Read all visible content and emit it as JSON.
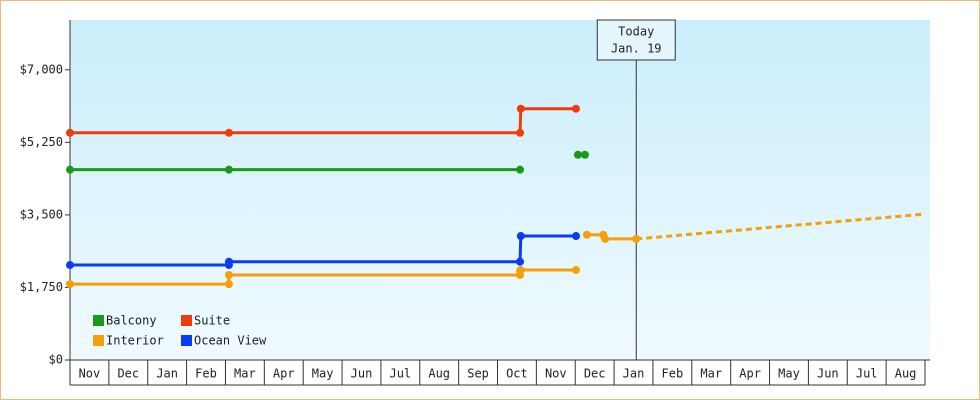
{
  "chart_data": {
    "type": "line",
    "categories": [
      "Nov",
      "Dec",
      "Jan",
      "Feb",
      "Mar",
      "Apr",
      "May",
      "Jun",
      "Jul",
      "Aug",
      "Sep",
      "Oct",
      "Nov",
      "Dec",
      "Jan",
      "Feb",
      "Mar",
      "Apr",
      "May",
      "Jun",
      "Jul",
      "Aug"
    ],
    "xlim": [
      0,
      22
    ],
    "ylim": [
      0,
      8200
    ],
    "yticks": [
      {
        "value": 0,
        "label": "$0"
      },
      {
        "value": 1750,
        "label": "$1,750"
      },
      {
        "value": 3500,
        "label": "$3,500"
      },
      {
        "value": 5250,
        "label": "$5,250"
      },
      {
        "value": 7000,
        "label": "$7,000"
      }
    ],
    "series": [
      {
        "name": "Balcony",
        "color": "#1a9a1a",
        "x": [
          0,
          4.09,
          11.58,
          null,
          13.07,
          13.25
        ],
        "values": [
          4590,
          4590,
          4590,
          null,
          4950,
          4950
        ]
      },
      {
        "name": "Suite",
        "color": "#f03c0a",
        "x": [
          0,
          4.09,
          11.58,
          11.6,
          13.02
        ],
        "values": [
          5480,
          5480,
          5480,
          6060,
          6060
        ]
      },
      {
        "name": "Interior",
        "color": "#f5a00a",
        "x": [
          0,
          4.09,
          4.09,
          11.58,
          11.58,
          11.6,
          13.02,
          null,
          13.3,
          13.72,
          13.77,
          14.57
        ],
        "values": [
          1830,
          1830,
          2050,
          2050,
          2150,
          2170,
          2170,
          null,
          3020,
          3020,
          2920,
          2920
        ]
      },
      {
        "name": "Ocean View",
        "color": "#0a3cf5",
        "x": [
          0,
          4.09,
          4.09,
          11.58,
          11.6,
          13.02
        ],
        "values": [
          2290,
          2290,
          2370,
          2370,
          2990,
          2990
        ]
      },
      {
        "color": "#f5a00a",
        "dashed": true,
        "x": [
          14.57,
          22
        ],
        "values": [
          2920,
          3520
        ]
      }
    ],
    "annotation": {
      "x": 14.57,
      "lines": [
        "Today",
        "Jan. 19"
      ]
    }
  }
}
